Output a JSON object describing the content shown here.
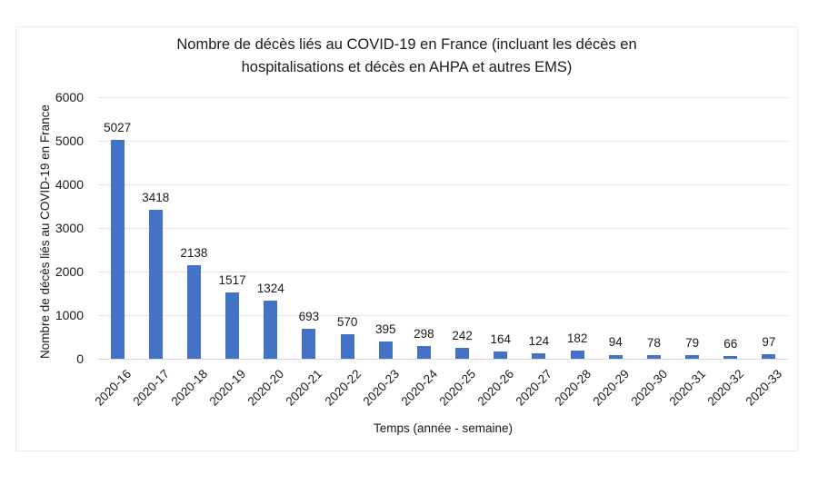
{
  "chart": {
    "title_line1": "Nombre de décès liés au COVID-19 en France (incluant les décès en",
    "title_line2": "hospitalisations et décès en AHPA et autres EMS)",
    "colors": {
      "bar": "#4472C4",
      "gridline": "#e4e4e4",
      "axis_line": "#d9d9d9",
      "text": "#1a1a1a",
      "frame_border": "#ececec"
    }
  },
  "chart_data": {
    "type": "bar",
    "title": "Nombre de décès liés au COVID-19 en France (incluant les décès en hospitalisations et décès en AHPA et autres EMS)",
    "categories": [
      "2020-16",
      "2020-17",
      "2020-18",
      "2020-19",
      "2020-20",
      "2020-21",
      "2020-22",
      "2020-23",
      "2020-24",
      "2020-25",
      "2020-26",
      "2020-27",
      "2020-28",
      "2020-29",
      "2020-30",
      "2020-31",
      "2020-32",
      "2020-33"
    ],
    "values": [
      5027,
      3418,
      2138,
      1517,
      1324,
      693,
      570,
      395,
      298,
      242,
      164,
      124,
      182,
      94,
      78,
      79,
      66,
      97
    ],
    "xlabel": "Temps (année - semaine)",
    "ylabel": "Nombre de décès liés au COVID-19 en France",
    "ylim": [
      0,
      6000
    ],
    "ytick_step": 1000,
    "grid": true,
    "legend": false,
    "data_labels": true
  }
}
